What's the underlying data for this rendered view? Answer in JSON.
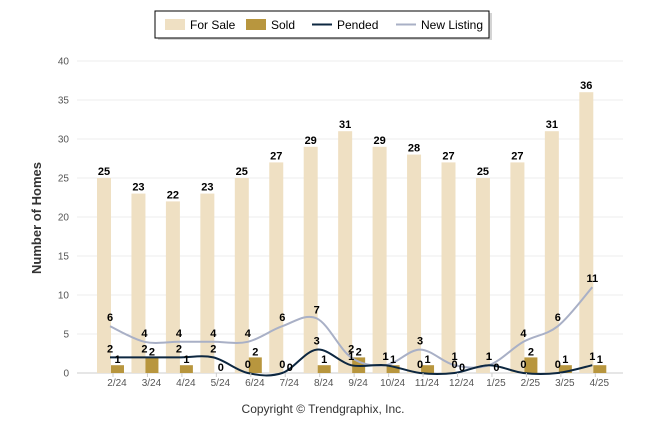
{
  "chart_data": {
    "type": "bar",
    "categories": [
      "2/24",
      "3/24",
      "4/24",
      "5/24",
      "6/24",
      "7/24",
      "8/24",
      "9/24",
      "10/24",
      "11/24",
      "12/24",
      "1/25",
      "2/25",
      "3/25",
      "4/25"
    ],
    "series": [
      {
        "name": "For Sale",
        "type": "bar",
        "color": "#efe0c3",
        "values": [
          25,
          23,
          22,
          23,
          25,
          27,
          29,
          31,
          29,
          28,
          27,
          25,
          27,
          31,
          36
        ]
      },
      {
        "name": "Sold",
        "type": "bar",
        "color": "#b8963e",
        "values": [
          1,
          2,
          1,
          0,
          2,
          0,
          1,
          2,
          1,
          1,
          0,
          0,
          2,
          1,
          1
        ]
      },
      {
        "name": "Pended",
        "type": "line",
        "color": "#0d2740",
        "values": [
          2,
          2,
          2,
          2,
          0,
          0,
          3,
          1,
          1,
          0,
          0,
          1,
          0,
          0,
          1
        ]
      },
      {
        "name": "New Listing",
        "type": "line",
        "color": "#a9b0c6",
        "values": [
          6,
          4,
          4,
          4,
          4,
          6,
          7,
          2,
          1,
          3,
          1,
          1,
          4,
          6,
          11
        ]
      }
    ],
    "ylabel": "Number of Homes",
    "xlabel": "",
    "ylim": [
      0,
      40
    ],
    "yticks": [
      0,
      5,
      10,
      15,
      20,
      25,
      30,
      35,
      40
    ],
    "grid": true,
    "legend_position": "top-center"
  },
  "legend": [
    {
      "label": "For Sale",
      "kind": "swatch",
      "color": "#efe0c3"
    },
    {
      "label": "Sold",
      "kind": "swatch",
      "color": "#b8963e"
    },
    {
      "label": "Pended",
      "kind": "line",
      "color": "#0d2740"
    },
    {
      "label": "New Listing",
      "kind": "line",
      "color": "#a9b0c6"
    }
  ],
  "footer": {
    "copyright": "Copyright © Trendgraphix, Inc."
  }
}
